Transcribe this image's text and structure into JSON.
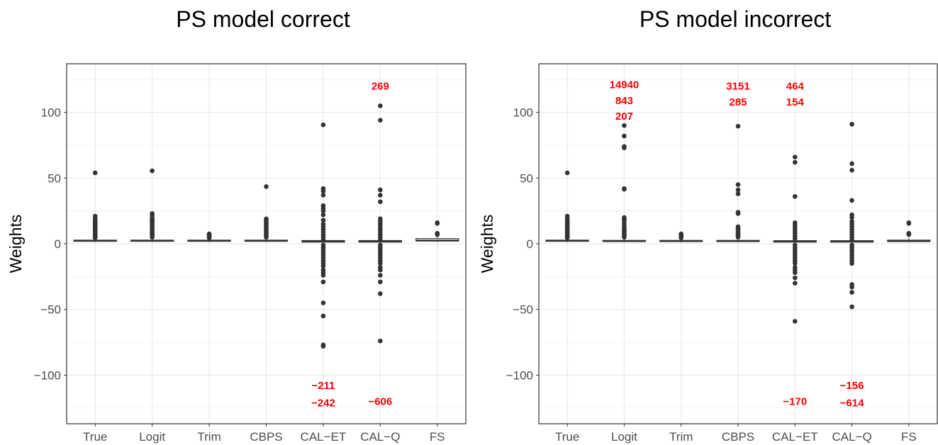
{
  "colors": {
    "annotation": "#ff0000",
    "points": "#333333",
    "box_fill": "#ffffff",
    "grid": "#ebebeb",
    "panel_border": "#333333"
  },
  "chart_data": [
    {
      "type": "box",
      "title": "PS model correct",
      "xlabel": "",
      "ylabel": "Weights",
      "ylim": [
        -137,
        137
      ],
      "y_ticks": [
        "−100",
        "−50",
        "0",
        "50",
        "100"
      ],
      "y_tick_values": [
        -100,
        -50,
        0,
        50,
        100
      ],
      "grid": true,
      "categories": [
        "True",
        "Logit",
        "Trim",
        "CBPS",
        "CAL−ET",
        "CAL−Q",
        "FS"
      ],
      "boxes": [
        {
          "q1": 1.8,
          "median": 2.2,
          "q3": 2.8,
          "whisker_low": 1.2,
          "whisker_high": 4.0
        },
        {
          "q1": 1.8,
          "median": 2.2,
          "q3": 2.8,
          "whisker_low": 1.2,
          "whisker_high": 4.0
        },
        {
          "q1": 1.8,
          "median": 2.2,
          "q3": 2.8,
          "whisker_low": 1.2,
          "whisker_high": 4.0
        },
        {
          "q1": 1.8,
          "median": 2.2,
          "q3": 2.8,
          "whisker_low": 1.2,
          "whisker_high": 4.0
        },
        {
          "q1": 1.2,
          "median": 1.9,
          "q3": 2.5,
          "whisker_low": 0.5,
          "whisker_high": 3.5
        },
        {
          "q1": 1.2,
          "median": 1.9,
          "q3": 2.5,
          "whisker_low": 0.5,
          "whisker_high": 3.5
        },
        {
          "q1": 2.0,
          "median": 2.6,
          "q3": 4.0,
          "whisker_low": 1.2,
          "whisker_high": 6.5
        }
      ],
      "outliers": [
        [
          54,
          21,
          19,
          18,
          17,
          16,
          15,
          14,
          13,
          12,
          11,
          10,
          9,
          8,
          7,
          6,
          5,
          4.5
        ],
        [
          55.5,
          23,
          22,
          20,
          19,
          18,
          17,
          16,
          15,
          14,
          13,
          12,
          11,
          10,
          9,
          8,
          7,
          6,
          5
        ],
        [
          7.5,
          7,
          6.5,
          6,
          5.5,
          5,
          4.5
        ],
        [
          43.5,
          19,
          18,
          17,
          16,
          15,
          14,
          13,
          12,
          11,
          10,
          9,
          8,
          7,
          6,
          5
        ],
        [
          90.5,
          42,
          40,
          37,
          29,
          27,
          25,
          22,
          18,
          15,
          13,
          11,
          9,
          7,
          5,
          3,
          -1,
          -3,
          -5,
          -7,
          -9,
          -11,
          -13,
          -15,
          -17,
          -20,
          -22,
          -24,
          -29,
          -45,
          -55,
          -77,
          -78
        ],
        [
          105,
          94,
          41,
          37,
          32,
          19,
          17,
          15,
          13,
          11,
          9,
          7,
          5,
          3,
          -1,
          -3,
          -5,
          -7,
          -9,
          -11,
          -13,
          -15,
          -18,
          -20,
          -24,
          -29,
          -38,
          -74
        ],
        [
          16,
          15.5,
          8,
          7.5,
          7
        ]
      ],
      "annotations": [
        {
          "category": "CAL−Q",
          "y": 120,
          "text": "269"
        },
        {
          "category": "CAL−ET",
          "y": -108,
          "text": "−211"
        },
        {
          "category": "CAL−ET",
          "y": -121,
          "text": "−242"
        },
        {
          "category": "CAL−Q",
          "y": -120,
          "text": "−606"
        }
      ]
    },
    {
      "type": "box",
      "title": "PS model incorrect",
      "xlabel": "",
      "ylabel": "Weights",
      "ylim": [
        -137,
        137
      ],
      "y_ticks": [
        "−100",
        "−50",
        "0",
        "50",
        "100"
      ],
      "y_tick_values": [
        -100,
        -50,
        0,
        50,
        100
      ],
      "grid": true,
      "categories": [
        "True",
        "Logit",
        "Trim",
        "CBPS",
        "CAL−ET",
        "CAL−Q",
        "FS"
      ],
      "boxes": [
        {
          "q1": 1.8,
          "median": 2.2,
          "q3": 2.8,
          "whisker_low": 1.2,
          "whisker_high": 4.0
        },
        {
          "q1": 1.6,
          "median": 2.0,
          "q3": 2.6,
          "whisker_low": 1.0,
          "whisker_high": 3.8
        },
        {
          "q1": 1.6,
          "median": 2.0,
          "q3": 2.6,
          "whisker_low": 1.0,
          "whisker_high": 3.8
        },
        {
          "q1": 1.6,
          "median": 2.0,
          "q3": 2.6,
          "whisker_low": 1.0,
          "whisker_high": 3.8
        },
        {
          "q1": 1.2,
          "median": 1.8,
          "q3": 2.4,
          "whisker_low": 0.5,
          "whisker_high": 3.5
        },
        {
          "q1": 1.2,
          "median": 1.8,
          "q3": 2.4,
          "whisker_low": 0.5,
          "whisker_high": 3.5
        },
        {
          "q1": 1.6,
          "median": 2.2,
          "q3": 2.8,
          "whisker_low": 1.0,
          "whisker_high": 4.5
        }
      ],
      "outliers": [
        [
          54,
          21,
          19,
          18,
          17,
          16,
          15,
          14,
          13,
          12,
          11,
          10,
          9,
          8,
          7,
          6,
          5,
          4.5
        ],
        [
          90,
          82,
          74,
          73,
          42,
          41.5,
          20,
          19,
          18,
          16,
          14,
          12,
          11,
          10,
          9,
          8,
          7,
          6,
          5
        ],
        [
          7.5,
          7,
          6.5,
          6,
          5.5,
          5,
          4.5
        ],
        [
          89.5,
          45,
          41,
          38,
          24,
          23,
          13,
          12,
          11,
          10,
          9,
          8,
          7,
          6,
          5
        ],
        [
          66,
          62,
          36,
          16,
          14,
          12,
          10,
          8,
          6,
          4,
          -1,
          -3,
          -5,
          -7,
          -9,
          -11,
          -13,
          -15,
          -18,
          -20,
          -22,
          -26,
          -30,
          -59
        ],
        [
          91,
          61,
          56,
          33,
          22,
          20,
          17,
          15,
          13,
          11,
          9,
          7,
          5,
          3,
          -1,
          -3,
          -5,
          -7,
          -9,
          -11,
          -13,
          -15,
          -31,
          -33,
          -37,
          -48
        ],
        [
          16,
          15.5,
          8,
          7.5,
          7
        ]
      ],
      "annotations": [
        {
          "category": "Logit",
          "y": 121,
          "text": "14940"
        },
        {
          "category": "Logit",
          "y": 109,
          "text": "843"
        },
        {
          "category": "Logit",
          "y": 97,
          "text": "207"
        },
        {
          "category": "CBPS",
          "y": 120,
          "text": "3151"
        },
        {
          "category": "CBPS",
          "y": 108,
          "text": "285"
        },
        {
          "category": "CAL−ET",
          "y": 120,
          "text": "464"
        },
        {
          "category": "CAL−ET",
          "y": 108,
          "text": "154"
        },
        {
          "category": "CAL−Q",
          "y": -108,
          "text": "−156"
        },
        {
          "category": "CAL−ET",
          "y": -120,
          "text": "−170"
        },
        {
          "category": "CAL−Q",
          "y": -121,
          "text": "−614"
        }
      ]
    }
  ]
}
